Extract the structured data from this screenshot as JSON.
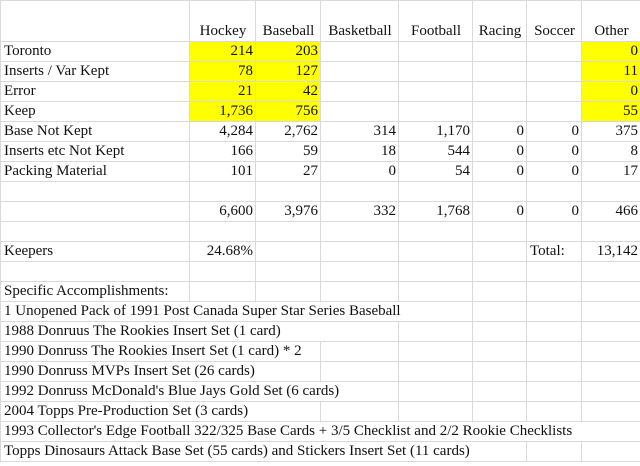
{
  "columns": [
    "",
    "Hockey",
    "Baseball",
    "Basketball",
    "Football",
    "Racing",
    "Soccer",
    "Other"
  ],
  "highlight_color": "#ffff00",
  "rows": [
    {
      "label": "Toronto",
      "values": [
        "214",
        "203",
        "",
        "",
        "",
        "",
        "0"
      ],
      "highlight": true
    },
    {
      "label": "Inserts / Var Kept",
      "values": [
        "78",
        "127",
        "",
        "",
        "",
        "",
        "11"
      ],
      "highlight": true
    },
    {
      "label": "Error",
      "values": [
        "21",
        "42",
        "",
        "",
        "",
        "",
        "0"
      ],
      "highlight": true
    },
    {
      "label": "Keep",
      "values": [
        "1,736",
        "756",
        "",
        "",
        "",
        "",
        "55"
      ],
      "highlight": true
    },
    {
      "label": "Base Not Kept",
      "values": [
        "4,284",
        "2,762",
        "314",
        "1,170",
        "0",
        "0",
        "375"
      ]
    },
    {
      "label": "Inserts etc Not Kept",
      "values": [
        "166",
        "59",
        "18",
        "544",
        "0",
        "0",
        "8"
      ]
    },
    {
      "label": "Packing Material",
      "values": [
        "101",
        "27",
        "0",
        "54",
        "0",
        "0",
        "17"
      ]
    }
  ],
  "totals": [
    "6,600",
    "3,976",
    "332",
    "1,768",
    "0",
    "0",
    "466"
  ],
  "keepers": {
    "label": "Keepers",
    "percent": "24.68%",
    "total_label": "Total:",
    "total": "13,142"
  },
  "accomplishments": {
    "heading": "Specific Accomplishments:",
    "items": [
      "1 Unopened Pack of 1991 Post Canada Super Star Series Baseball",
      "1988 Donruus The Rookies Insert Set (1 card)",
      "1990 Donruss The Rookies Insert Set (1 card) * 2",
      "1990 Donruss MVPs Insert Set (26 cards)",
      "1992 Donruss McDonald's Blue Jays Gold Set (6 cards)",
      "2004 Topps Pre-Production Set (3 cards)",
      "1993 Collector's Edge Football 322/325 Base Cards + 3/5 Checklist and 2/2 Rookie Checklists",
      "Topps Dinosaurs Attack Base Set (55 cards) and Stickers Insert Set (11 cards)"
    ]
  }
}
